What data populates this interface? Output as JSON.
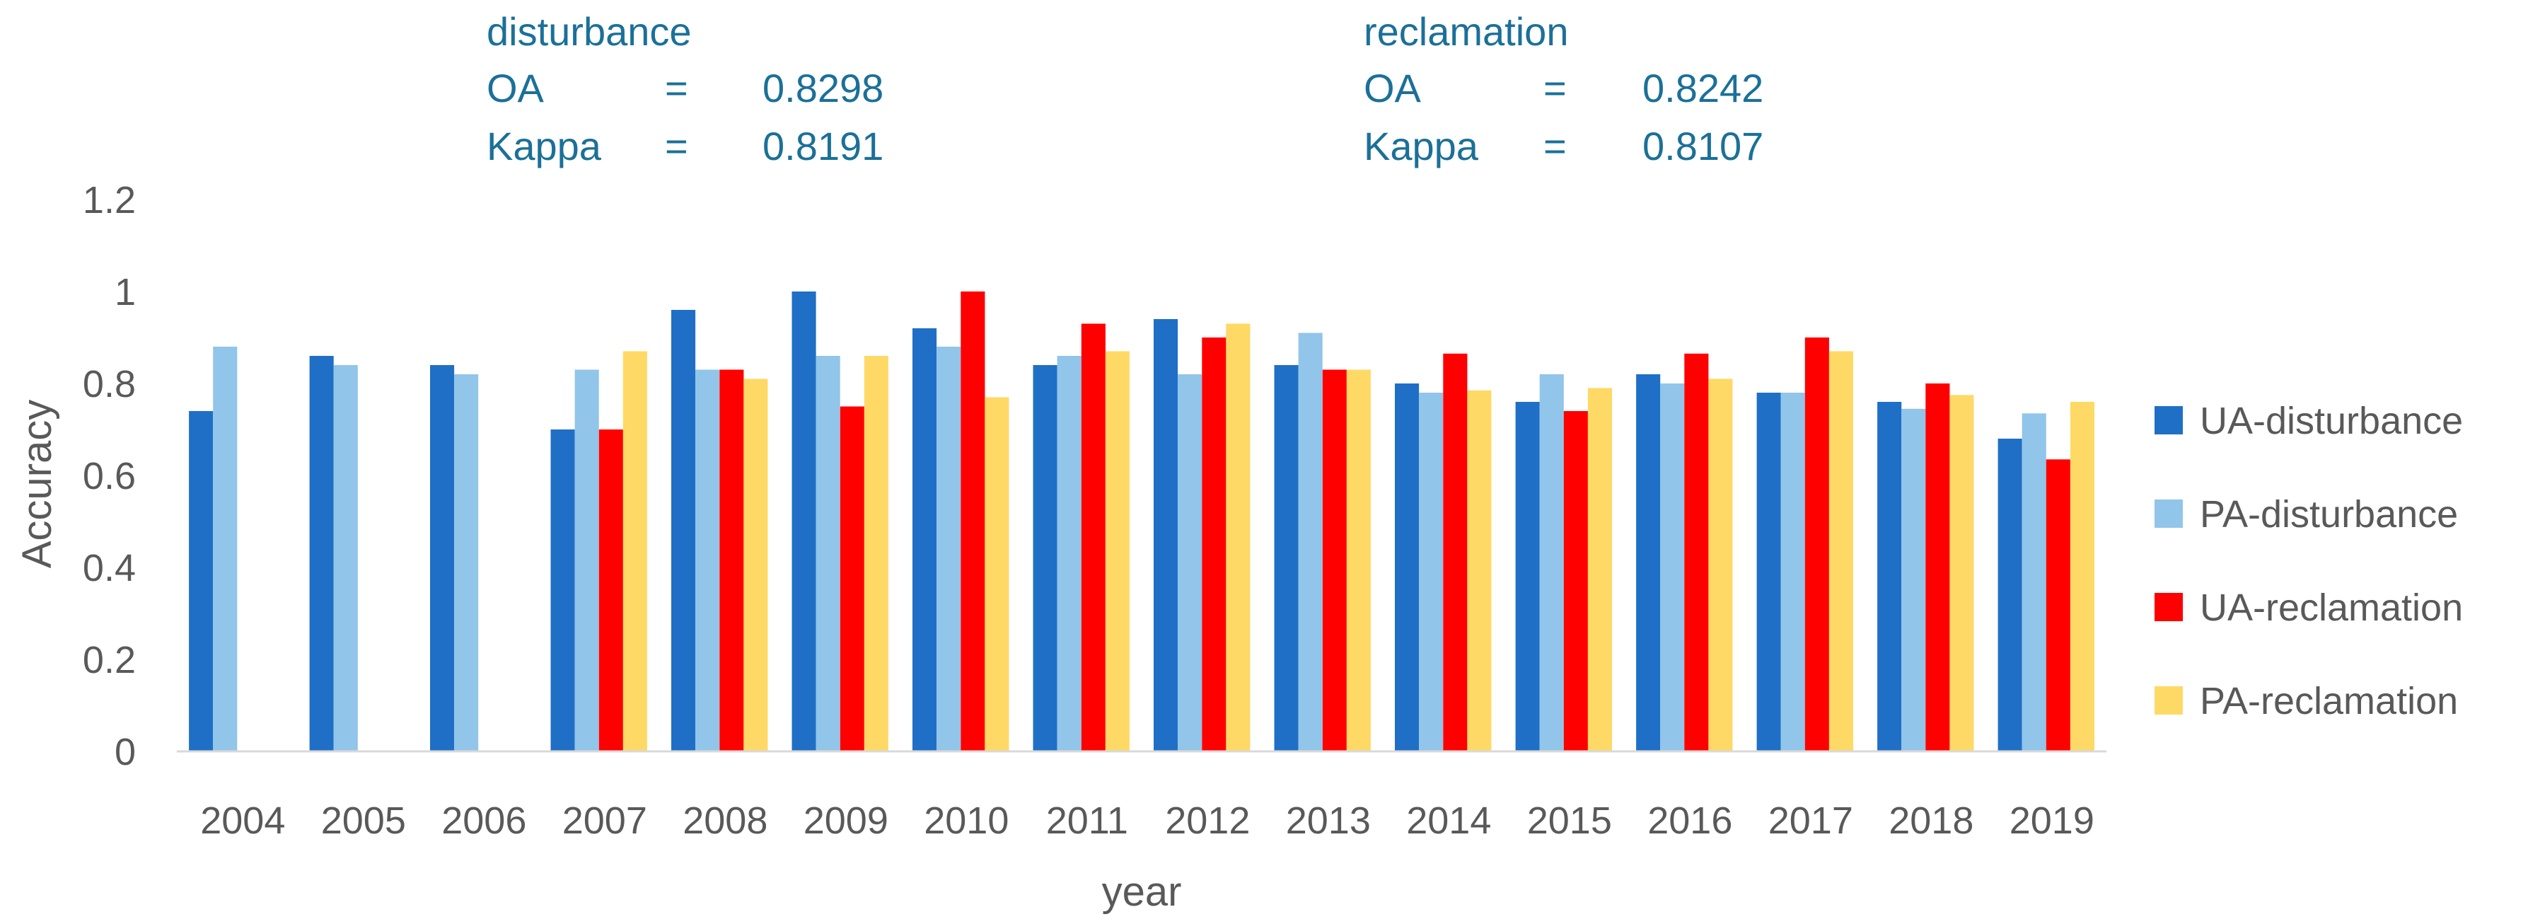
{
  "stats": [
    {
      "heading": "disturbance",
      "rows": [
        {
          "label": "OA",
          "sign": "=",
          "value": "0.8298"
        },
        {
          "label": "Kappa",
          "sign": "=",
          "value": "0.8191"
        }
      ]
    },
    {
      "heading": "reclamation",
      "rows": [
        {
          "label": "OA",
          "sign": "=",
          "value": "0.8242"
        },
        {
          "label": "Kappa",
          "sign": "=",
          "value": "0.8107"
        }
      ]
    }
  ],
  "chart_data": {
    "type": "bar",
    "xlabel": "year",
    "ylabel": "Accuracy",
    "ylim": [
      0,
      1.2
    ],
    "yticks": [
      "0",
      "0.2",
      "0.4",
      "0.6",
      "0.8",
      "1",
      "1.2"
    ],
    "grid": false,
    "legend_position": "right",
    "categories": [
      "2004",
      "2005",
      "2006",
      "2007",
      "2008",
      "2009",
      "2010",
      "2011",
      "2012",
      "2013",
      "2014",
      "2015",
      "2016",
      "2017",
      "2018",
      "2019"
    ],
    "series": [
      {
        "name": "UA-disturbance",
        "color": "#1f6fc6",
        "values": [
          0.74,
          0.86,
          0.84,
          0.7,
          0.96,
          1.0,
          0.92,
          0.84,
          0.94,
          0.84,
          0.8,
          0.76,
          0.82,
          0.78,
          0.76,
          0.68
        ]
      },
      {
        "name": "PA-disturbance",
        "color": "#92c5ea",
        "values": [
          0.88,
          0.84,
          0.82,
          0.83,
          0.83,
          0.86,
          0.88,
          0.86,
          0.82,
          0.91,
          0.78,
          0.82,
          0.8,
          0.78,
          0.745,
          0.735
        ]
      },
      {
        "name": "UA-reclamation",
        "color": "#ff0000",
        "values": [
          null,
          null,
          null,
          0.7,
          0.83,
          0.75,
          1.0,
          0.93,
          0.9,
          0.83,
          0.865,
          0.74,
          0.865,
          0.9,
          0.8,
          0.635
        ]
      },
      {
        "name": "PA-reclamation",
        "color": "#ffd966",
        "values": [
          null,
          null,
          null,
          0.87,
          0.81,
          0.86,
          0.77,
          0.87,
          0.93,
          0.83,
          0.785,
          0.79,
          0.81,
          0.87,
          0.775,
          0.76
        ]
      }
    ]
  }
}
